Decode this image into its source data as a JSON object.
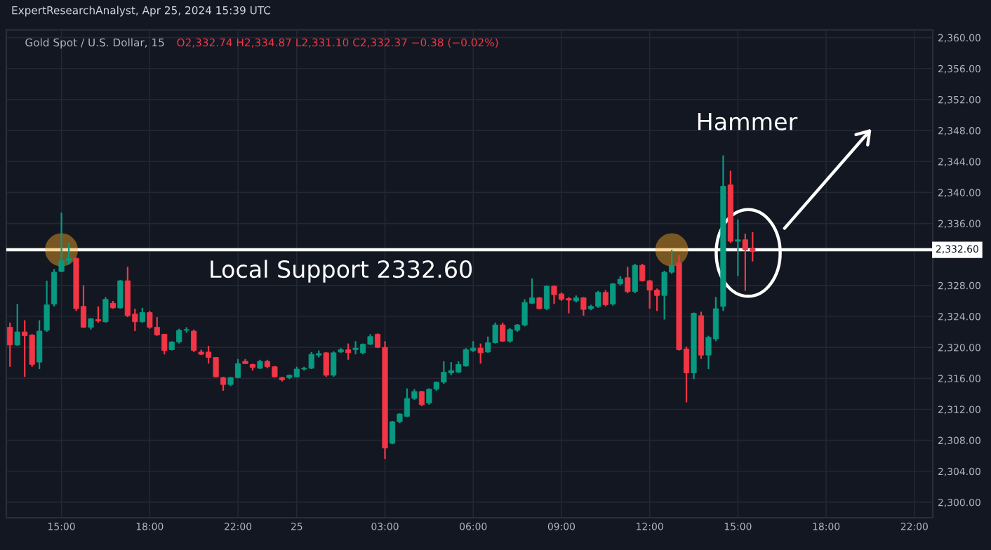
{
  "chart_data": {
    "type": "candlestick",
    "title": "ExpertResearchAnalyst, Apr 25, 2024 15:39 UTC",
    "subtitle": "Gold Spot / U.S. Dollar, 15",
    "categories": [
      null,
      null,
      null,
      null,
      null,
      null,
      null,
      "15:00",
      null,
      null,
      null,
      null,
      null,
      null,
      null,
      null,
      null,
      null,
      null,
      "18:00",
      null,
      null,
      null,
      null,
      null,
      null,
      null,
      null,
      null,
      null,
      null,
      "22:00",
      null,
      null,
      null,
      null,
      null,
      null,
      null,
      "25",
      null,
      null,
      null,
      null,
      null,
      null,
      null,
      null,
      null,
      null,
      null,
      "03:00",
      null,
      null,
      null,
      null,
      null,
      null,
      null,
      null,
      null,
      null,
      null,
      "06:00",
      null,
      null,
      null,
      null,
      null,
      null,
      null,
      null,
      null,
      null,
      null,
      "09:00",
      null,
      null,
      null,
      null,
      null,
      null,
      null,
      null,
      null,
      null,
      null,
      "12:00",
      null,
      null,
      null,
      null,
      null,
      null,
      null,
      null,
      null,
      null,
      null,
      "15:00",
      null,
      null,
      null,
      null,
      null,
      null,
      null,
      null,
      null,
      null,
      null,
      "18:00",
      null,
      null,
      null,
      null,
      null,
      null,
      null,
      null,
      null,
      null,
      null,
      "22:00",
      null,
      null
    ],
    "ohlc": [
      [
        2322.6,
        2323.2,
        2317.5,
        2320.3
      ],
      [
        2320.3,
        2325.6,
        2320.2,
        2322.0
      ],
      [
        2322.0,
        2323.5,
        2316.2,
        2321.5
      ],
      [
        2321.6,
        2321.7,
        2317.5,
        2317.8
      ],
      [
        2318.1,
        2323.5,
        2317.2,
        2322.1
      ],
      [
        2322.2,
        2328.6,
        2322.0,
        2325.5
      ],
      [
        2325.6,
        2330.1,
        2325.3,
        2329.7
      ],
      [
        2329.8,
        2337.4,
        2329.7,
        2331.2
      ],
      [
        2331.2,
        2333.5,
        2330.7,
        2331.5
      ],
      [
        2331.5,
        2331.6,
        2324.7,
        2325.0
      ],
      [
        2325.3,
        2328.0,
        2322.5,
        2322.6
      ],
      [
        2322.6,
        2323.8,
        2322.3,
        2323.7
      ],
      [
        2323.6,
        2325.3,
        2323.2,
        2323.4
      ],
      [
        2323.3,
        2326.5,
        2323.2,
        2326.2
      ],
      [
        2325.7,
        2326.0,
        2325.0,
        2325.1
      ],
      [
        2325.1,
        2328.7,
        2325.0,
        2328.6
      ],
      [
        2328.6,
        2330.4,
        2323.9,
        2324.1
      ],
      [
        2324.3,
        2325.0,
        2322.1,
        2323.3
      ],
      [
        2323.3,
        2325.1,
        2323.2,
        2324.5
      ],
      [
        2324.5,
        2324.7,
        2322.4,
        2322.6
      ],
      [
        2322.6,
        2323.9,
        2321.5,
        2321.6
      ],
      [
        2321.7,
        2321.7,
        2319.1,
        2319.6
      ],
      [
        2319.7,
        2320.8,
        2319.6,
        2320.7
      ],
      [
        2320.7,
        2322.4,
        2320.5,
        2322.2
      ],
      [
        2322.2,
        2322.6,
        2321.9,
        2322.3
      ],
      [
        2322.1,
        2322.3,
        2319.4,
        2319.6
      ],
      [
        2319.4,
        2319.7,
        2319.0,
        2319.1
      ],
      [
        2319.4,
        2320.2,
        2317.9,
        2318.7
      ],
      [
        2318.7,
        2318.7,
        2316.1,
        2316.2
      ],
      [
        2316.1,
        2316.2,
        2314.4,
        2315.2
      ],
      [
        2315.2,
        2316.2,
        2315.0,
        2316.1
      ],
      [
        2316.1,
        2318.5,
        2316.0,
        2317.9
      ],
      [
        2318.2,
        2318.5,
        2317.9,
        2317.9
      ],
      [
        2317.8,
        2317.9,
        2317.0,
        2317.4
      ],
      [
        2317.3,
        2318.4,
        2317.2,
        2318.2
      ],
      [
        2318.2,
        2318.4,
        2317.3,
        2317.5
      ],
      [
        2317.5,
        2317.6,
        2316.1,
        2316.2
      ],
      [
        2316.1,
        2316.2,
        2315.6,
        2315.8
      ],
      [
        2316.1,
        2316.5,
        2315.9,
        2316.4
      ],
      [
        2316.2,
        2317.5,
        2316.1,
        2317.2
      ],
      [
        2317.2,
        2317.5,
        2317.0,
        2317.3
      ],
      [
        2317.3,
        2319.4,
        2317.2,
        2319.1
      ],
      [
        2319.0,
        2319.6,
        2318.7,
        2319.2
      ],
      [
        2319.3,
        2319.4,
        2316.2,
        2316.4
      ],
      [
        2316.4,
        2319.5,
        2316.2,
        2319.3
      ],
      [
        2319.4,
        2319.9,
        2319.3,
        2319.7
      ],
      [
        2319.7,
        2320.5,
        2318.4,
        2319.3
      ],
      [
        2319.7,
        2320.8,
        2319.1,
        2319.9
      ],
      [
        2319.3,
        2320.5,
        2319.1,
        2320.4
      ],
      [
        2320.4,
        2321.7,
        2320.3,
        2321.4
      ],
      [
        2321.7,
        2321.8,
        2319.9,
        2320.0
      ],
      [
        2320.0,
        2320.8,
        2305.6,
        2307.0
      ],
      [
        2307.6,
        2310.5,
        2307.5,
        2310.4
      ],
      [
        2310.4,
        2311.5,
        2310.2,
        2311.4
      ],
      [
        2311.1,
        2314.7,
        2311.0,
        2313.4
      ],
      [
        2313.4,
        2314.6,
        2313.2,
        2314.3
      ],
      [
        2314.3,
        2314.4,
        2312.4,
        2312.6
      ],
      [
        2312.8,
        2314.7,
        2312.6,
        2314.6
      ],
      [
        2314.6,
        2315.6,
        2314.4,
        2315.5
      ],
      [
        2315.5,
        2318.2,
        2315.3,
        2316.8
      ],
      [
        2316.7,
        2318.1,
        2316.4,
        2317.0
      ],
      [
        2316.8,
        2318.2,
        2316.7,
        2317.8
      ],
      [
        2317.6,
        2319.9,
        2317.5,
        2319.7
      ],
      [
        2319.6,
        2320.8,
        2319.4,
        2319.9
      ],
      [
        2319.9,
        2320.5,
        2317.9,
        2319.3
      ],
      [
        2319.4,
        2321.4,
        2319.3,
        2320.6
      ],
      [
        2320.6,
        2323.2,
        2320.5,
        2322.9
      ],
      [
        2322.9,
        2323.2,
        2320.7,
        2320.8
      ],
      [
        2320.8,
        2322.5,
        2320.6,
        2322.3
      ],
      [
        2322.2,
        2323.0,
        2322.0,
        2322.9
      ],
      [
        2322.9,
        2326.2,
        2322.7,
        2325.8
      ],
      [
        2325.7,
        2328.9,
        2325.6,
        2326.4
      ],
      [
        2326.4,
        2326.5,
        2324.9,
        2325.0
      ],
      [
        2325.0,
        2328.0,
        2324.8,
        2327.9
      ],
      [
        2327.9,
        2328.0,
        2325.6,
        2326.8
      ],
      [
        2326.9,
        2327.1,
        2326.0,
        2326.2
      ],
      [
        2326.3,
        2326.5,
        2324.4,
        2326.1
      ],
      [
        2326.0,
        2326.7,
        2325.8,
        2326.4
      ],
      [
        2326.4,
        2326.5,
        2324.1,
        2324.9
      ],
      [
        2325.0,
        2325.5,
        2324.8,
        2325.3
      ],
      [
        2325.3,
        2327.3,
        2325.1,
        2327.1
      ],
      [
        2327.1,
        2327.4,
        2325.3,
        2325.5
      ],
      [
        2325.6,
        2328.3,
        2325.4,
        2328.2
      ],
      [
        2328.2,
        2329.2,
        2328.0,
        2328.8
      ],
      [
        2329.0,
        2330.4,
        2327.0,
        2327.2
      ],
      [
        2327.2,
        2330.8,
        2327.0,
        2330.6
      ],
      [
        2330.6,
        2330.8,
        2328.5,
        2328.6
      ],
      [
        2328.6,
        2328.7,
        2325.0,
        2327.4
      ],
      [
        2327.4,
        2327.6,
        2324.7,
        2326.7
      ],
      [
        2326.7,
        2329.9,
        2323.6,
        2329.7
      ],
      [
        2329.7,
        2332.6,
        2329.5,
        2330.6
      ],
      [
        2330.9,
        2331.9,
        2319.6,
        2319.7
      ],
      [
        2319.8,
        2320.1,
        2312.9,
        2316.7
      ],
      [
        2316.7,
        2324.5,
        2315.9,
        2324.4
      ],
      [
        2324.1,
        2324.6,
        2318.5,
        2319.0
      ],
      [
        2319.0,
        2321.5,
        2317.2,
        2321.3
      ],
      [
        2321.1,
        2326.5,
        2320.8,
        2325.0
      ],
      [
        2325.3,
        2344.8,
        2324.7,
        2340.8
      ],
      [
        2341.0,
        2342.8,
        2333.5,
        2333.7
      ],
      [
        2333.7,
        2336.5,
        2329.2,
        2333.9
      ],
      [
        2333.9,
        2334.7,
        2327.3,
        2332.6
      ],
      [
        2332.74,
        2334.87,
        2331.1,
        2332.37
      ],
      null,
      null,
      null,
      null,
      null,
      null,
      null,
      null,
      null,
      null,
      null,
      null,
      null,
      null,
      null,
      null,
      null,
      null,
      null,
      null,
      null,
      null,
      null,
      null
    ],
    "colors": [
      "#f23645",
      "#089981",
      "#f23645",
      "#f23645",
      "#089981",
      "#089981",
      "#089981",
      "#089981",
      "#089981",
      "#f23645",
      "#f23645",
      "#089981",
      "#f23645",
      "#089981",
      "#f23645",
      "#089981",
      "#f23645",
      "#f23645",
      "#089981",
      "#f23645",
      "#f23645",
      "#f23645",
      "#089981",
      "#089981",
      "#089981",
      "#f23645",
      "#f23645",
      "#f23645",
      "#f23645",
      "#f23645",
      "#089981",
      "#089981",
      "#f23645",
      "#f23645",
      "#089981",
      "#f23645",
      "#f23645",
      "#f23645",
      "#089981",
      "#089981",
      "#089981",
      "#089981",
      "#089981",
      "#f23645",
      "#089981",
      "#089981",
      "#f23645",
      "#089981",
      "#089981",
      "#089981",
      "#f23645",
      "#f23645",
      "#089981",
      "#089981",
      "#089981",
      "#089981",
      "#f23645",
      "#089981",
      "#089981",
      "#089981",
      "#089981",
      "#089981",
      "#089981",
      "#089981",
      "#f23645",
      "#089981",
      "#089981",
      "#f23645",
      "#089981",
      "#089981",
      "#089981",
      "#089981",
      "#f23645",
      "#089981",
      "#f23645",
      "#f23645",
      "#f23645",
      "#089981",
      "#f23645",
      "#089981",
      "#089981",
      "#f23645",
      "#089981",
      "#089981",
      "#f23645",
      "#089981",
      "#f23645",
      "#f23645",
      "#f23645",
      "#089981",
      "#089981",
      "#f23645",
      "#f23645",
      "#089981",
      "#f23645",
      "#089981",
      "#089981",
      "#089981",
      "#f23645",
      "#089981",
      "#f23645",
      "#f23645",
      null,
      null,
      null,
      null,
      null,
      null,
      null,
      null,
      null,
      null,
      null,
      null,
      null,
      null,
      null,
      null,
      null,
      null,
      null,
      null,
      null,
      null,
      null,
      null
    ],
    "ylim": [
      2298,
      2361
    ],
    "yticks": [
      {
        "value": 2300,
        "label": "2,300.00"
      },
      {
        "value": 2304,
        "label": "2,304.00"
      },
      {
        "value": 2308,
        "label": "2,308.00"
      },
      {
        "value": 2312,
        "label": "2,312.00"
      },
      {
        "value": 2316,
        "label": "2,316.00"
      },
      {
        "value": 2320,
        "label": "2,320.00"
      },
      {
        "value": 2324,
        "label": "2,324.00"
      },
      {
        "value": 2328,
        "label": "2,328.00"
      },
      {
        "value": 2336,
        "label": "2,336.00"
      },
      {
        "value": 2340,
        "label": "2,340.00"
      },
      {
        "value": 2344,
        "label": "2,344.00"
      },
      {
        "value": 2348,
        "label": "2,348.00"
      },
      {
        "value": 2352,
        "label": "2,352.00"
      },
      {
        "value": 2356,
        "label": "2,356.00"
      },
      {
        "value": 2360,
        "label": "2,360.00"
      }
    ],
    "ref_lines": [
      {
        "axis": "y",
        "value": 2332.6,
        "label": "Local Support 2332.60",
        "color": "#ffffff",
        "line_style": "solid"
      }
    ],
    "annotations": [
      "2,332.60",
      "O2,332.74 H2,334.87 L2,331.10 C2,332.37 −0.38 (−0.02%)",
      "Hammer"
    ],
    "grid": true
  }
}
